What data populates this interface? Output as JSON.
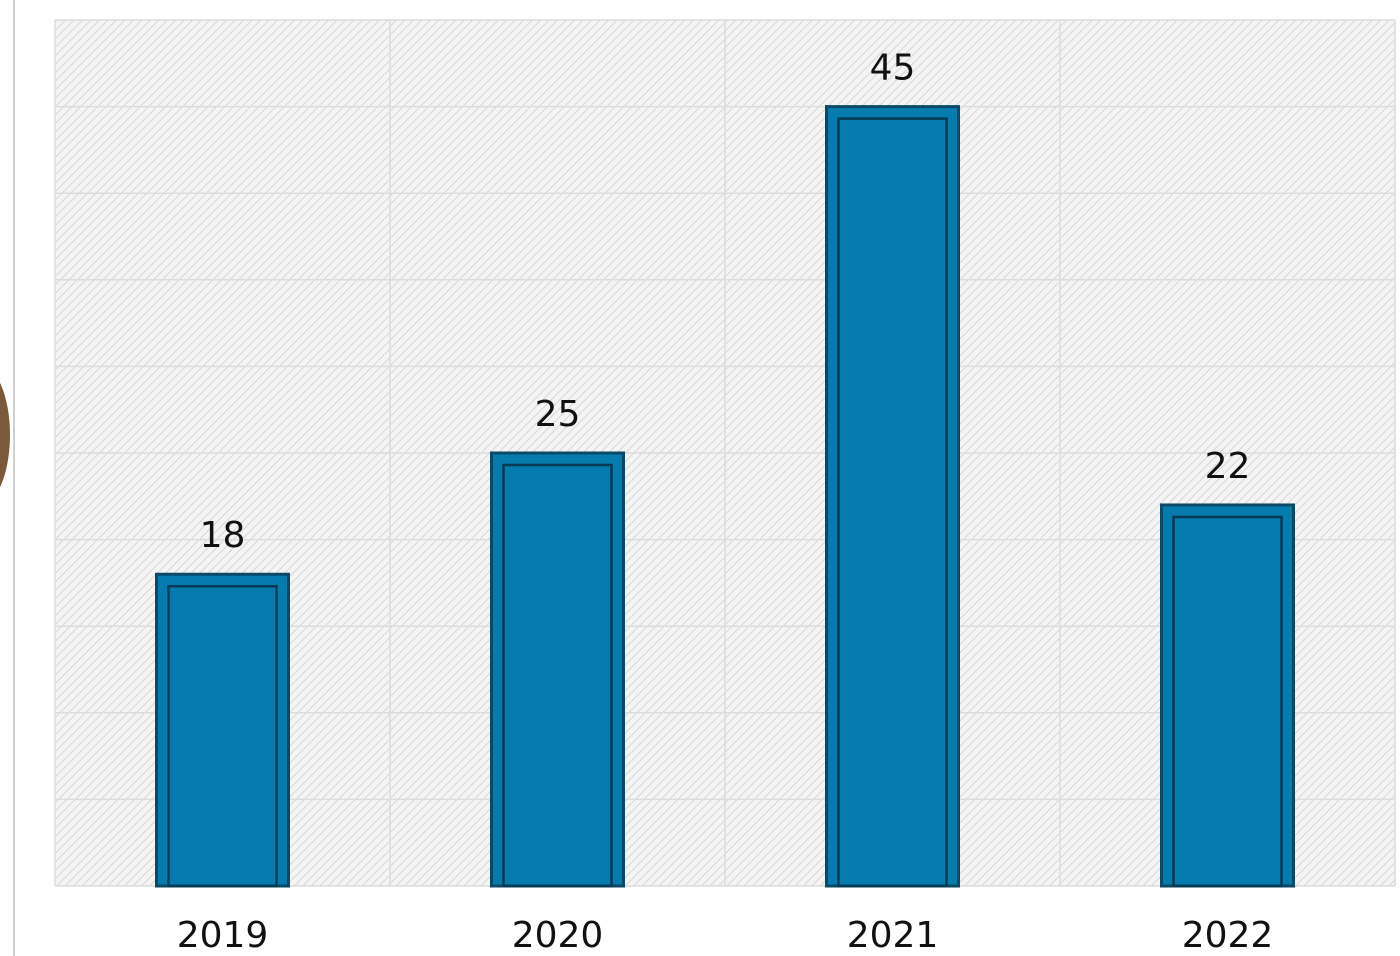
{
  "chart_data": {
    "type": "bar",
    "categories": [
      "2019",
      "2020",
      "2021",
      "2022"
    ],
    "values": [
      18,
      25,
      45,
      22
    ],
    "color": "#067bad",
    "ylim": [
      0,
      50
    ],
    "yticks": [
      0,
      5,
      10,
      15,
      20,
      25,
      30,
      35,
      40,
      45,
      50
    ],
    "grid": true
  }
}
